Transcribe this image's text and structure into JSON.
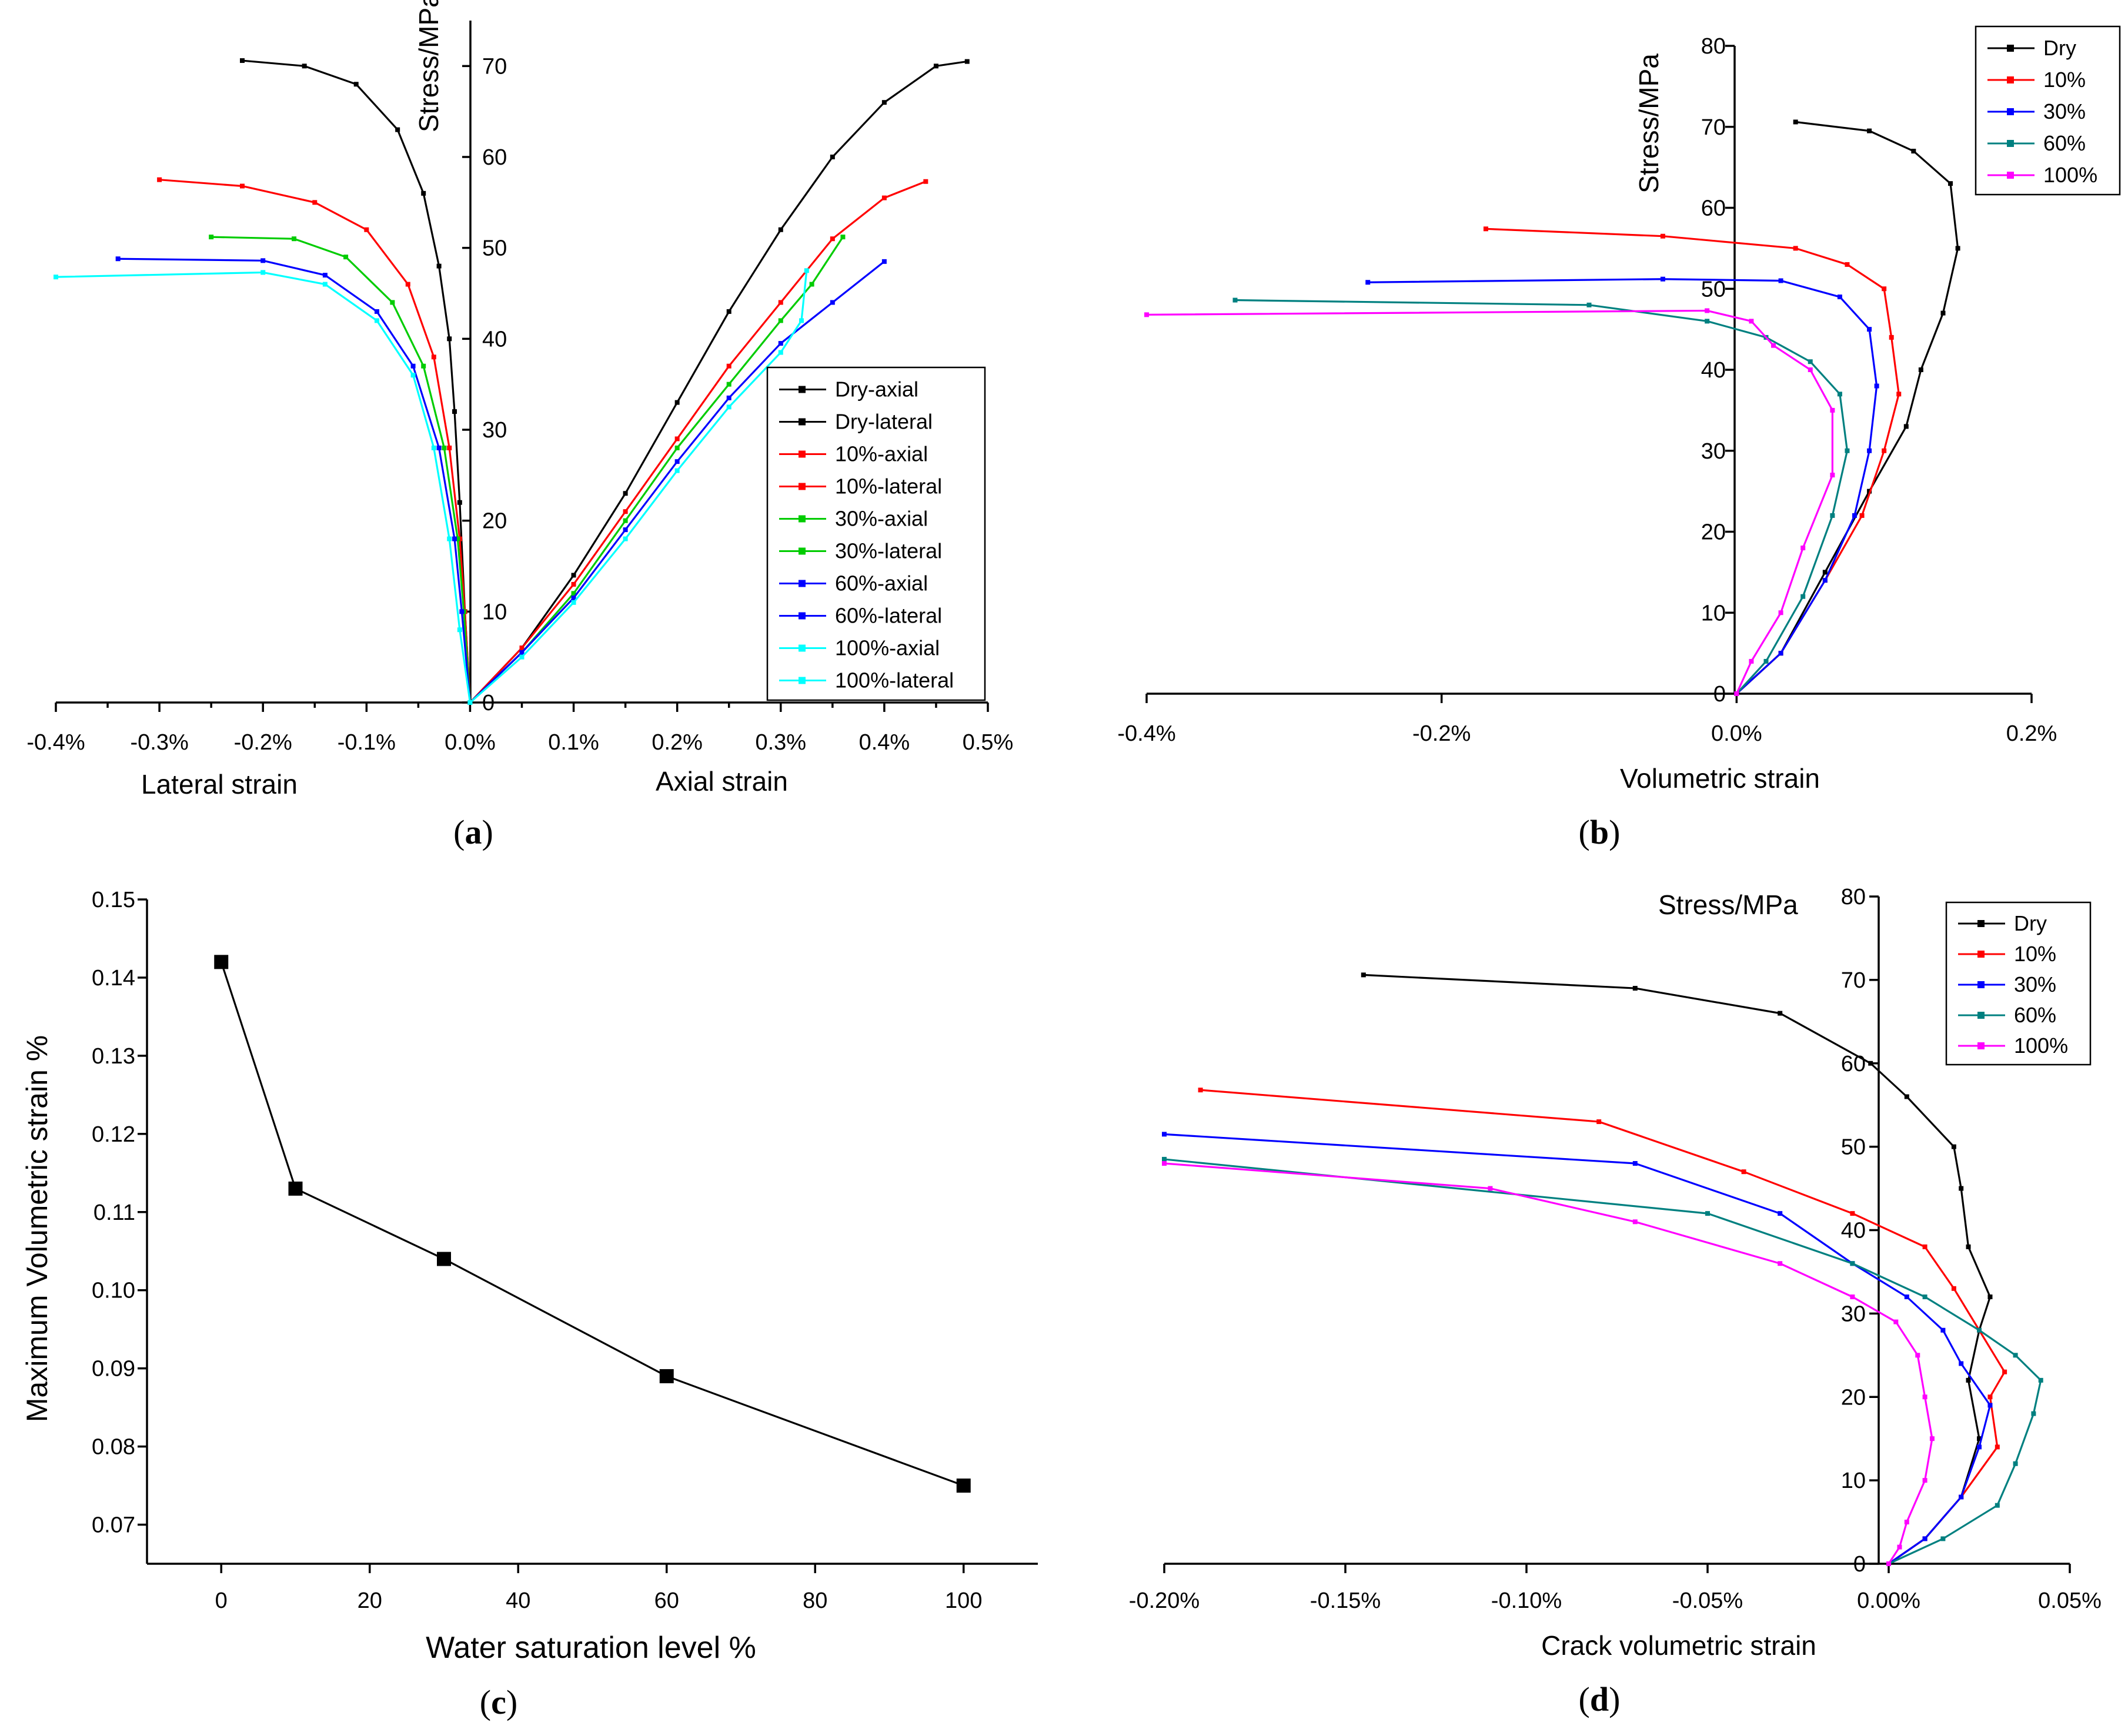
{
  "chart_data": [
    {
      "id": "a",
      "type": "line",
      "panel_label": "a",
      "ylabel": "Stress/MPa",
      "xlabel_left": "Lateral strain",
      "xlabel_right": "Axial strain",
      "xlim": [
        -0.4,
        0.5
      ],
      "ylim": [
        0,
        75
      ],
      "x_ticks": [
        "-0.4%",
        "-0.3%",
        "-0.2%",
        "-0.1%",
        "0.0%",
        "0.1%",
        "0.2%",
        "0.3%",
        "0.4%",
        "0.5%"
      ],
      "y_ticks": [
        "0",
        "10",
        "20",
        "30",
        "40",
        "50",
        "60",
        "70"
      ],
      "legend": [
        "Dry-axial",
        "Dry-lateral",
        "10%-axial",
        "10%-lateral",
        "30%-axial",
        "30%-lateral",
        "60%-axial",
        "60%-lateral",
        "100%-axial",
        "100%-lateral"
      ],
      "colors": [
        "#000000",
        "#000000",
        "#ff0000",
        "#ff0000",
        "#00cc00",
        "#00cc00",
        "#0000ff",
        "#0000ff",
        "#00ffff",
        "#00ffff"
      ],
      "series": [
        {
          "name": "Dry-axial",
          "points": [
            [
              0,
              0
            ],
            [
              0.05,
              6
            ],
            [
              0.1,
              14
            ],
            [
              0.15,
              23
            ],
            [
              0.2,
              33
            ],
            [
              0.25,
              43
            ],
            [
              0.3,
              52
            ],
            [
              0.35,
              60
            ],
            [
              0.4,
              66
            ],
            [
              0.45,
              70
            ],
            [
              0.48,
              70.5
            ]
          ]
        },
        {
          "name": "Dry-lateral",
          "points": [
            [
              0,
              0
            ],
            [
              -0.005,
              10
            ],
            [
              -0.01,
              22
            ],
            [
              -0.015,
              32
            ],
            [
              -0.02,
              40
            ],
            [
              -0.03,
              48
            ],
            [
              -0.045,
              56
            ],
            [
              -0.07,
              63
            ],
            [
              -0.11,
              68
            ],
            [
              -0.16,
              70
            ],
            [
              -0.22,
              70.6
            ]
          ]
        },
        {
          "name": "10%-axial",
          "points": [
            [
              0,
              0
            ],
            [
              0.05,
              6
            ],
            [
              0.1,
              13
            ],
            [
              0.15,
              21
            ],
            [
              0.2,
              29
            ],
            [
              0.25,
              37
            ],
            [
              0.3,
              44
            ],
            [
              0.35,
              51
            ],
            [
              0.4,
              55.5
            ],
            [
              0.44,
              57.3
            ]
          ]
        },
        {
          "name": "10%-lateral",
          "points": [
            [
              0,
              0
            ],
            [
              -0.005,
              10
            ],
            [
              -0.01,
              18
            ],
            [
              -0.02,
              28
            ],
            [
              -0.035,
              38
            ],
            [
              -0.06,
              46
            ],
            [
              -0.1,
              52
            ],
            [
              -0.15,
              55
            ],
            [
              -0.22,
              56.8
            ],
            [
              -0.3,
              57.5
            ]
          ]
        },
        {
          "name": "30%-axial",
          "points": [
            [
              0,
              0
            ],
            [
              0.05,
              5.5
            ],
            [
              0.1,
              12
            ],
            [
              0.15,
              20
            ],
            [
              0.2,
              28
            ],
            [
              0.25,
              35
            ],
            [
              0.3,
              42
            ],
            [
              0.33,
              46
            ],
            [
              0.36,
              51.2
            ]
          ]
        },
        {
          "name": "30%-lateral",
          "points": [
            [
              0,
              0
            ],
            [
              -0.006,
              10
            ],
            [
              -0.012,
              18
            ],
            [
              -0.025,
              28
            ],
            [
              -0.045,
              37
            ],
            [
              -0.075,
              44
            ],
            [
              -0.12,
              49
            ],
            [
              -0.17,
              51
            ],
            [
              -0.25,
              51.2
            ]
          ]
        },
        {
          "name": "60%-axial",
          "points": [
            [
              0,
              0
            ],
            [
              0.05,
              5.5
            ],
            [
              0.1,
              11.5
            ],
            [
              0.15,
              19
            ],
            [
              0.2,
              26.5
            ],
            [
              0.25,
              33.5
            ],
            [
              0.3,
              39.5
            ],
            [
              0.35,
              44
            ],
            [
              0.4,
              48.5
            ]
          ]
        },
        {
          "name": "60%-lateral",
          "points": [
            [
              0,
              0
            ],
            [
              -0.008,
              10
            ],
            [
              -0.015,
              18
            ],
            [
              -0.03,
              28
            ],
            [
              -0.055,
              37
            ],
            [
              -0.09,
              43
            ],
            [
              -0.14,
              47
            ],
            [
              -0.2,
              48.6
            ],
            [
              -0.34,
              48.8
            ]
          ]
        },
        {
          "name": "100%-axial",
          "points": [
            [
              0,
              0
            ],
            [
              0.05,
              5
            ],
            [
              0.1,
              11
            ],
            [
              0.15,
              18
            ],
            [
              0.2,
              25.5
            ],
            [
              0.25,
              32.5
            ],
            [
              0.3,
              38.5
            ],
            [
              0.32,
              42
            ],
            [
              0.325,
              47.5
            ]
          ]
        },
        {
          "name": "100%-lateral",
          "points": [
            [
              0,
              0
            ],
            [
              -0.01,
              8
            ],
            [
              -0.02,
              18
            ],
            [
              -0.035,
              28
            ],
            [
              -0.055,
              36
            ],
            [
              -0.09,
              42
            ],
            [
              -0.14,
              46
            ],
            [
              -0.2,
              47.3
            ],
            [
              -0.4,
              46.8
            ]
          ]
        }
      ]
    },
    {
      "id": "b",
      "type": "line",
      "panel_label": "b",
      "ylabel": "Stress/MPa",
      "xlabel": "Volumetric strain",
      "xlim": [
        -0.4,
        0.2
      ],
      "ylim": [
        0,
        80
      ],
      "x_ticks": [
        "-0.4%",
        "-0.2%",
        "0.0%",
        "0.2%"
      ],
      "y_ticks": [
        "0",
        "10",
        "20",
        "30",
        "40",
        "50",
        "60",
        "70",
        "80"
      ],
      "legend": [
        "Dry",
        "10%",
        "30%",
        "60%",
        "100%"
      ],
      "colors": [
        "#000000",
        "#ff0000",
        "#0000ff",
        "#008080",
        "#ff00ff"
      ],
      "series": [
        {
          "name": "Dry",
          "points": [
            [
              0,
              0
            ],
            [
              0.03,
              5
            ],
            [
              0.06,
              15
            ],
            [
              0.09,
              25
            ],
            [
              0.115,
              33
            ],
            [
              0.125,
              40
            ],
            [
              0.14,
              47
            ],
            [
              0.15,
              55
            ],
            [
              0.145,
              63
            ],
            [
              0.12,
              67
            ],
            [
              0.09,
              69.5
            ],
            [
              0.04,
              70.6
            ]
          ]
        },
        {
          "name": "10%",
          "points": [
            [
              0,
              0
            ],
            [
              0.03,
              5
            ],
            [
              0.06,
              14
            ],
            [
              0.085,
              22
            ],
            [
              0.1,
              30
            ],
            [
              0.11,
              37
            ],
            [
              0.105,
              44
            ],
            [
              0.1,
              50
            ],
            [
              0.075,
              53
            ],
            [
              0.04,
              55
            ],
            [
              -0.05,
              56.5
            ],
            [
              -0.17,
              57.4
            ]
          ]
        },
        {
          "name": "30%",
          "points": [
            [
              0,
              0
            ],
            [
              0.03,
              5
            ],
            [
              0.06,
              14
            ],
            [
              0.08,
              22
            ],
            [
              0.09,
              30
            ],
            [
              0.095,
              38
            ],
            [
              0.09,
              45
            ],
            [
              0.07,
              49
            ],
            [
              0.03,
              51
            ],
            [
              -0.05,
              51.2
            ],
            [
              -0.25,
              50.8
            ]
          ]
        },
        {
          "name": "60%",
          "points": [
            [
              0,
              0
            ],
            [
              0.02,
              4
            ],
            [
              0.045,
              12
            ],
            [
              0.065,
              22
            ],
            [
              0.075,
              30
            ],
            [
              0.07,
              37
            ],
            [
              0.05,
              41
            ],
            [
              0.02,
              44
            ],
            [
              -0.02,
              46
            ],
            [
              -0.1,
              48
            ],
            [
              -0.34,
              48.6
            ]
          ]
        },
        {
          "name": "100%",
          "points": [
            [
              0,
              0
            ],
            [
              0.01,
              4
            ],
            [
              0.03,
              10
            ],
            [
              0.045,
              18
            ],
            [
              0.065,
              27
            ],
            [
              0.065,
              35
            ],
            [
              0.05,
              40
            ],
            [
              0.025,
              43
            ],
            [
              0.01,
              46
            ],
            [
              -0.02,
              47.3
            ],
            [
              -0.4,
              46.8
            ]
          ]
        }
      ]
    },
    {
      "id": "c",
      "type": "line",
      "panel_label": "c",
      "ylabel": "Maximum Volumetric strain %",
      "xlabel": "Water saturation level %",
      "xlim": [
        -10,
        110
      ],
      "ylim": [
        0.065,
        0.15
      ],
      "x_ticks": [
        "0",
        "20",
        "40",
        "60",
        "80",
        "100"
      ],
      "y_ticks": [
        "0.07",
        "0.08",
        "0.09",
        "0.10",
        "0.11",
        "0.12",
        "0.13",
        "0.14",
        "0.15"
      ],
      "x": [
        0,
        10,
        30,
        60,
        100
      ],
      "values": [
        0.142,
        0.113,
        0.104,
        0.089,
        0.075
      ]
    },
    {
      "id": "d",
      "type": "line",
      "panel_label": "d",
      "ylabel": "Stress/MPa",
      "xlabel": "Crack volumetric strain",
      "xlim": [
        -0.2,
        0.05
      ],
      "ylim": [
        0,
        80
      ],
      "x_ticks": [
        "-0.20%",
        "-0.15%",
        "-0.10%",
        "-0.05%",
        "0.00%",
        "0.05%"
      ],
      "y_ticks": [
        "0",
        "10",
        "20",
        "30",
        "40",
        "50",
        "60",
        "70",
        "80"
      ],
      "legend": [
        "Dry",
        "10%",
        "30%",
        "60%",
        "100%"
      ],
      "colors": [
        "#000000",
        "#ff0000",
        "#0000ff",
        "#008080",
        "#ff00ff"
      ],
      "series": [
        {
          "name": "Dry",
          "points": [
            [
              0,
              0
            ],
            [
              0.01,
              3
            ],
            [
              0.02,
              8
            ],
            [
              0.025,
              15
            ],
            [
              0.022,
              22
            ],
            [
              0.025,
              28
            ],
            [
              0.028,
              32
            ],
            [
              0.022,
              38
            ],
            [
              0.02,
              45
            ],
            [
              0.018,
              50
            ],
            [
              0.005,
              56
            ],
            [
              -0.005,
              60
            ],
            [
              -0.03,
              66
            ],
            [
              -0.07,
              69
            ],
            [
              -0.145,
              70.6
            ]
          ]
        },
        {
          "name": "10%",
          "points": [
            [
              0,
              0
            ],
            [
              0.01,
              3
            ],
            [
              0.02,
              8
            ],
            [
              0.03,
              14
            ],
            [
              0.028,
              20
            ],
            [
              0.032,
              23
            ],
            [
              0.025,
              28
            ],
            [
              0.018,
              33
            ],
            [
              0.01,
              38
            ],
            [
              -0.01,
              42
            ],
            [
              -0.04,
              47
            ],
            [
              -0.08,
              53
            ],
            [
              -0.19,
              56.8
            ]
          ]
        },
        {
          "name": "30%",
          "points": [
            [
              0,
              0
            ],
            [
              0.01,
              3
            ],
            [
              0.02,
              8
            ],
            [
              0.025,
              14
            ],
            [
              0.028,
              19
            ],
            [
              0.02,
              24
            ],
            [
              0.015,
              28
            ],
            [
              0.005,
              32
            ],
            [
              -0.01,
              36
            ],
            [
              -0.03,
              42
            ],
            [
              -0.07,
              48
            ],
            [
              -0.2,
              51.5
            ]
          ]
        },
        {
          "name": "60%",
          "points": [
            [
              0,
              0
            ],
            [
              0.015,
              3
            ],
            [
              0.03,
              7
            ],
            [
              0.035,
              12
            ],
            [
              0.04,
              18
            ],
            [
              0.042,
              22
            ],
            [
              0.035,
              25
            ],
            [
              0.025,
              28
            ],
            [
              0.01,
              32
            ],
            [
              -0.01,
              36
            ],
            [
              -0.05,
              42
            ],
            [
              -0.2,
              48.5
            ]
          ]
        },
        {
          "name": "100%",
          "points": [
            [
              0,
              0
            ],
            [
              0.003,
              2
            ],
            [
              0.005,
              5
            ],
            [
              0.01,
              10
            ],
            [
              0.012,
              15
            ],
            [
              0.01,
              20
            ],
            [
              0.008,
              25
            ],
            [
              0.002,
              29
            ],
            [
              -0.01,
              32
            ],
            [
              -0.03,
              36
            ],
            [
              -0.07,
              41
            ],
            [
              -0.11,
              45
            ],
            [
              -0.2,
              48
            ]
          ]
        }
      ]
    }
  ]
}
